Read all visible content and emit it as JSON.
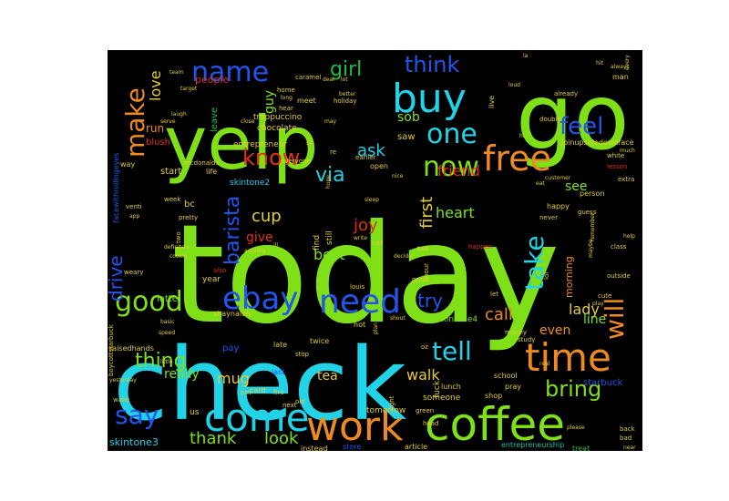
{
  "cloud": {
    "background": "#000000",
    "palette": {
      "lime": "#7fe018",
      "cyan": "#22d2e6",
      "orange": "#ee8a22",
      "blue": "#2255ee",
      "green": "#22bb44",
      "red": "#e03018",
      "yellow": "#e4cc32",
      "teal": "#1ec0a8"
    },
    "words": [
      {
        "text": "today",
        "color": "#7fe018",
        "size": 150
      },
      {
        "text": "check",
        "color": "#22d2e6",
        "size": 110
      },
      {
        "text": "go",
        "color": "#7fe018",
        "size": 100
      },
      {
        "text": "yelp",
        "color": "#7fe018",
        "size": 80
      },
      {
        "text": "coffee",
        "color": "#7fe018",
        "size": 50
      },
      {
        "text": "work",
        "color": "#ee8a22",
        "size": 44
      },
      {
        "text": "come",
        "color": "#22d2e6",
        "size": 42
      },
      {
        "text": "time",
        "color": "#ee8a22",
        "size": 42
      },
      {
        "text": "buy",
        "color": "#22d2e6",
        "size": 44
      },
      {
        "text": "free",
        "color": "#ee8a22",
        "size": 38
      },
      {
        "text": "need",
        "color": "#2255ee",
        "size": 36
      },
      {
        "text": "ebay",
        "color": "#2255ee",
        "size": 34
      },
      {
        "text": "good",
        "color": "#7fe018",
        "size": 30
      },
      {
        "text": "one",
        "color": "#22d2e6",
        "size": 30
      },
      {
        "text": "now",
        "color": "#7fe018",
        "size": 30
      },
      {
        "text": "know",
        "color": "#e03018",
        "size": 24
      },
      {
        "text": "make",
        "color": "#ee8a22",
        "size": 28
      },
      {
        "text": "name",
        "color": "#2255ee",
        "size": 30
      },
      {
        "text": "think",
        "color": "#2255ee",
        "size": 24
      },
      {
        "text": "girl",
        "color": "#22bb44",
        "size": 22
      },
      {
        "text": "feel",
        "color": "#2255ee",
        "size": 26
      },
      {
        "text": "take",
        "color": "#22d2e6",
        "size": 28
      },
      {
        "text": "will",
        "color": "#ee8a22",
        "size": 28
      },
      {
        "text": "tell",
        "color": "#22d2e6",
        "size": 28
      },
      {
        "text": "bring",
        "color": "#7fe018",
        "size": 24
      },
      {
        "text": "say",
        "color": "#2255ee",
        "size": 28
      },
      {
        "text": "thing",
        "color": "#7fe018",
        "size": 22
      },
      {
        "text": "barista",
        "color": "#2255ee",
        "size": 22
      },
      {
        "text": "drive",
        "color": "#2255ee",
        "size": 20
      },
      {
        "text": "via",
        "color": "#22d2e6",
        "size": 22
      },
      {
        "text": "ask",
        "color": "#22d2e6",
        "size": 18
      },
      {
        "text": "friend",
        "color": "#e03018",
        "size": 16
      },
      {
        "text": "first",
        "color": "#e4cc32",
        "size": 18
      },
      {
        "text": "joy",
        "color": "#e03018",
        "size": 18
      },
      {
        "text": "cup",
        "color": "#e4cc32",
        "size": 18
      },
      {
        "text": "give",
        "color": "#e03018",
        "size": 14
      },
      {
        "text": "heart",
        "color": "#7fe018",
        "size": 16
      },
      {
        "text": "best",
        "color": "#7fe018",
        "size": 16
      },
      {
        "text": "try",
        "color": "#2255ee",
        "size": 20
      },
      {
        "text": "call",
        "color": "#ee8a22",
        "size": 18
      },
      {
        "text": "lady",
        "color": "#e4cc32",
        "size": 16
      },
      {
        "text": "line",
        "color": "#7fe018",
        "size": 14
      },
      {
        "text": "even",
        "color": "#ee8a22",
        "size": 14
      },
      {
        "text": "walk",
        "color": "#e4cc32",
        "size": 16
      },
      {
        "text": "tea",
        "color": "#e4cc32",
        "size": 14
      },
      {
        "text": "mug",
        "color": "#e4cc32",
        "size": 16
      },
      {
        "text": "really",
        "color": "#7fe018",
        "size": 14
      },
      {
        "text": "thank",
        "color": "#7fe018",
        "size": 18
      },
      {
        "text": "look",
        "color": "#7fe018",
        "size": 18
      },
      {
        "text": "love",
        "color": "#e4cc32",
        "size": 16
      },
      {
        "text": "guy",
        "color": "#7fe018",
        "size": 14
      },
      {
        "text": "sob",
        "color": "#7fe018",
        "size": 14
      },
      {
        "text": "see",
        "color": "#7fe018",
        "size": 14
      },
      {
        "text": "run",
        "color": "#ee8a22",
        "size": 12
      },
      {
        "text": "people",
        "color": "#e03018",
        "size": 11
      },
      {
        "text": "leave",
        "color": "#22bb44",
        "size": 10
      },
      {
        "text": "troppuccino",
        "color": "#e4cc32",
        "size": 9
      },
      {
        "text": "chocolate",
        "color": "#e4cc32",
        "size": 9
      },
      {
        "text": "blush",
        "color": "#e03018",
        "size": 10
      },
      {
        "text": "skintone2",
        "color": "#22d2e6",
        "size": 9
      },
      {
        "text": "start",
        "color": "#e4cc32",
        "size": 10
      },
      {
        "text": "bc",
        "color": "#e4cc32",
        "size": 10
      },
      {
        "text": "latte",
        "color": "#7fe018",
        "size": 10
      },
      {
        "text": "pay",
        "color": "#2255ee",
        "size": 10
      },
      {
        "text": "skintone4",
        "color": "#7fe018",
        "size": 9
      },
      {
        "text": "skintone3",
        "color": "#22d2e6",
        "size": 11
      },
      {
        "text": "starbuck",
        "color": "#2255ee",
        "size": 10
      },
      {
        "text": "morning",
        "color": "#ee8a22",
        "size": 11
      },
      {
        "text": "saw",
        "color": "#e4cc32",
        "size": 10
      },
      {
        "text": "entrepreneur",
        "color": "#e4cc32",
        "size": 9
      },
      {
        "text": "entrepreneurship",
        "color": "#1ec0a8",
        "size": 8
      },
      {
        "text": "joinupsidedownface",
        "color": "#e4cc32",
        "size": 8
      },
      {
        "text": "facewithrollingeyes",
        "color": "#2255ee",
        "size": 8
      },
      {
        "text": "raisedhands",
        "color": "#e4cc32",
        "size": 8
      },
      {
        "text": "boycottstarbuck",
        "color": "#e4cc32",
        "size": 7
      },
      {
        "text": "shaynaleh",
        "color": "#e4cc32",
        "size": 8
      },
      {
        "text": "mcdonalds",
        "color": "#e4cc32",
        "size": 7
      },
      {
        "text": "holiday",
        "color": "#e4cc32",
        "size": 7
      },
      {
        "text": "caramel",
        "color": "#e4cc32",
        "size": 7
      },
      {
        "text": "instead",
        "color": "#e4cc32",
        "size": 8
      },
      {
        "text": "store",
        "color": "#2255ee",
        "size": 8
      },
      {
        "text": "article",
        "color": "#e4cc32",
        "size": 8
      },
      {
        "text": "treat",
        "color": "#22bb44",
        "size": 8
      },
      {
        "text": "tomorrow",
        "color": "#e4cc32",
        "size": 9
      },
      {
        "text": "someone",
        "color": "#e4cc32",
        "size": 9
      },
      {
        "text": "shop",
        "color": "#e4cc32",
        "size": 8
      },
      {
        "text": "lunch",
        "color": "#e4cc32",
        "size": 8
      },
      {
        "text": "fuck",
        "color": "#e4cc32",
        "size": 9
      },
      {
        "text": "school",
        "color": "#e4cc32",
        "size": 8
      },
      {
        "text": "pray",
        "color": "#e4cc32",
        "size": 8
      },
      {
        "text": "money",
        "color": "#e4cc32",
        "size": 7
      },
      {
        "text": "study",
        "color": "#e4cc32",
        "size": 7
      },
      {
        "text": "great",
        "color": "#e4cc32",
        "size": 7
      },
      {
        "text": "twice",
        "color": "#e4cc32",
        "size": 8
      },
      {
        "text": "late",
        "color": "#e4cc32",
        "size": 8
      },
      {
        "text": "hot",
        "color": "#e4cc32",
        "size": 8
      },
      {
        "text": "stop",
        "color": "#e4cc32",
        "size": 7
      },
      {
        "text": "last",
        "color": "#2255ee",
        "size": 8
      },
      {
        "text": "card",
        "color": "#e4cc32",
        "size": 8
      },
      {
        "text": "fire",
        "color": "#e4cc32",
        "size": 7
      },
      {
        "text": "next",
        "color": "#e4cc32",
        "size": 7
      },
      {
        "text": "old",
        "color": "#e4cc32",
        "size": 7
      },
      {
        "text": "us",
        "color": "#e4cc32",
        "size": 9
      },
      {
        "text": "pm",
        "color": "#e4cc32",
        "size": 7
      },
      {
        "text": "year",
        "color": "#e4cc32",
        "size": 9
      },
      {
        "text": "also",
        "color": "#e03018",
        "size": 7
      },
      {
        "text": "louis",
        "color": "#e4cc32",
        "size": 7
      },
      {
        "text": "find",
        "color": "#e4cc32",
        "size": 9
      },
      {
        "text": "still",
        "color": "#e4cc32",
        "size": 9
      },
      {
        "text": "way",
        "color": "#e4cc32",
        "size": 8
      },
      {
        "text": "life",
        "color": "#e4cc32",
        "size": 8
      },
      {
        "text": "everyone",
        "color": "#e4cc32",
        "size": 7
      },
      {
        "text": "open",
        "color": "#e4cc32",
        "size": 8
      },
      {
        "text": "earlier",
        "color": "#e4cc32",
        "size": 7
      },
      {
        "text": "week",
        "color": "#e4cc32",
        "size": 7
      },
      {
        "text": "pretty",
        "color": "#e4cc32",
        "size": 7
      },
      {
        "text": "definitely",
        "color": "#e4cc32",
        "size": 6
      },
      {
        "text": "cookie",
        "color": "#e4cc32",
        "size": 6
      },
      {
        "text": "weary",
        "color": "#e4cc32",
        "size": 7
      },
      {
        "text": "actually",
        "color": "#e4cc32",
        "size": 6
      },
      {
        "text": "ill",
        "color": "#e4cc32",
        "size": 6
      },
      {
        "text": "cold",
        "color": "#e4cc32",
        "size": 6
      },
      {
        "text": "write",
        "color": "#e4cc32",
        "size": 6
      },
      {
        "text": "talk",
        "color": "#e4cc32",
        "size": 7
      },
      {
        "text": "decide",
        "color": "#e4cc32",
        "size": 6
      },
      {
        "text": "hour",
        "color": "#e4cc32",
        "size": 7
      },
      {
        "text": "let",
        "color": "#e4cc32",
        "size": 7
      },
      {
        "text": "happen",
        "color": "#e03018",
        "size": 7
      },
      {
        "text": "happy",
        "color": "#e4cc32",
        "size": 8
      },
      {
        "text": "never",
        "color": "#e4cc32",
        "size": 7
      },
      {
        "text": "remember",
        "color": "#e4cc32",
        "size": 6
      },
      {
        "text": "person",
        "color": "#e4cc32",
        "size": 8
      },
      {
        "text": "guess",
        "color": "#e4cc32",
        "size": 7
      },
      {
        "text": "maybe",
        "color": "#e4cc32",
        "size": 6
      },
      {
        "text": "class",
        "color": "#e4cc32",
        "size": 7
      },
      {
        "text": "help",
        "color": "#e4cc32",
        "size": 6
      },
      {
        "text": "outside",
        "color": "#e4cc32",
        "size": 7
      },
      {
        "text": "cute",
        "color": "#e4cc32",
        "size": 7
      },
      {
        "text": "play",
        "color": "#e4cc32",
        "size": 6
      },
      {
        "text": "lesson",
        "color": "#e03018",
        "size": 7
      },
      {
        "text": "white",
        "color": "#e4cc32",
        "size": 7
      },
      {
        "text": "much",
        "color": "#e4cc32",
        "size": 6
      },
      {
        "text": "man",
        "color": "#e4cc32",
        "size": 8
      },
      {
        "text": "always",
        "color": "#e4cc32",
        "size": 6
      },
      {
        "text": "already",
        "color": "#e4cc32",
        "size": 7
      },
      {
        "text": "double",
        "color": "#e4cc32",
        "size": 7
      },
      {
        "text": "hi",
        "color": "#e4cc32",
        "size": 6
      },
      {
        "text": "live",
        "color": "#e4cc32",
        "size": 8
      },
      {
        "text": "lol",
        "color": "#e4cc32",
        "size": 7
      },
      {
        "text": "loud",
        "color": "#e4cc32",
        "size": 6
      },
      {
        "text": "la",
        "color": "#e4cc32",
        "size": 6
      },
      {
        "text": "hear",
        "color": "#e4cc32",
        "size": 7
      },
      {
        "text": "home",
        "color": "#e4cc32",
        "size": 7
      },
      {
        "text": "meet",
        "color": "#e4cc32",
        "size": 8
      },
      {
        "text": "deal",
        "color": "#e4cc32",
        "size": 6
      },
      {
        "text": "lot",
        "color": "#e4cc32",
        "size": 6
      },
      {
        "text": "better",
        "color": "#e4cc32",
        "size": 6
      },
      {
        "text": "may",
        "color": "#e4cc32",
        "size": 6
      },
      {
        "text": "re",
        "color": "#e4cc32",
        "size": 7
      },
      {
        "text": "sit",
        "color": "#e4cc32",
        "size": 6
      },
      {
        "text": "sleep",
        "color": "#e4cc32",
        "size": 6
      },
      {
        "text": "hope",
        "color": "#e4cc32",
        "size": 6
      },
      {
        "text": "team",
        "color": "#e4cc32",
        "size": 6
      },
      {
        "text": "target",
        "color": "#e4cc32",
        "size": 6
      },
      {
        "text": "laugh",
        "color": "#e4cc32",
        "size": 6
      },
      {
        "text": "serve",
        "color": "#e4cc32",
        "size": 6
      },
      {
        "text": "venti",
        "color": "#e4cc32",
        "size": 7
      },
      {
        "text": "app",
        "color": "#e4cc32",
        "size": 6
      },
      {
        "text": "two",
        "color": "#e4cc32",
        "size": 7
      },
      {
        "text": "every",
        "color": "#e4cc32",
        "size": 6
      },
      {
        "text": "hit",
        "color": "#e4cc32",
        "size": 6
      },
      {
        "text": "back",
        "color": "#e4cc32",
        "size": 7
      },
      {
        "text": "bad",
        "color": "#e4cc32",
        "size": 7
      },
      {
        "text": "near",
        "color": "#e4cc32",
        "size": 6
      },
      {
        "text": "green",
        "color": "#e4cc32",
        "size": 7
      },
      {
        "text": "head",
        "color": "#e4cc32",
        "size": 7
      },
      {
        "text": "right",
        "color": "#e4cc32",
        "size": 7
      },
      {
        "text": "wake",
        "color": "#e4cc32",
        "size": 7
      },
      {
        "text": "yesterday",
        "color": "#e4cc32",
        "size": 6
      },
      {
        "text": "little",
        "color": "#e4cc32",
        "size": 6
      },
      {
        "text": "extra",
        "color": "#e4cc32",
        "size": 7
      },
      {
        "text": "shout",
        "color": "#e4cc32",
        "size": 6
      },
      {
        "text": "plan",
        "color": "#e4cc32",
        "size": 6
      },
      {
        "text": "please",
        "color": "#e4cc32",
        "size": 6
      },
      {
        "text": "customer",
        "color": "#e4cc32",
        "size": 6
      },
      {
        "text": "close",
        "color": "#e4cc32",
        "size": 6
      },
      {
        "text": "long",
        "color": "#e4cc32",
        "size": 6
      },
      {
        "text": "basic",
        "color": "#e4cc32",
        "size": 6
      },
      {
        "text": "speed",
        "color": "#e4cc32",
        "size": 6
      },
      {
        "text": "real",
        "color": "#e4cc32",
        "size": 6
      },
      {
        "text": "oz",
        "color": "#e4cc32",
        "size": 7
      },
      {
        "text": "eat",
        "color": "#e4cc32",
        "size": 6
      },
      {
        "text": "nice",
        "color": "#e4cc32",
        "size": 6
      }
    ]
  }
}
